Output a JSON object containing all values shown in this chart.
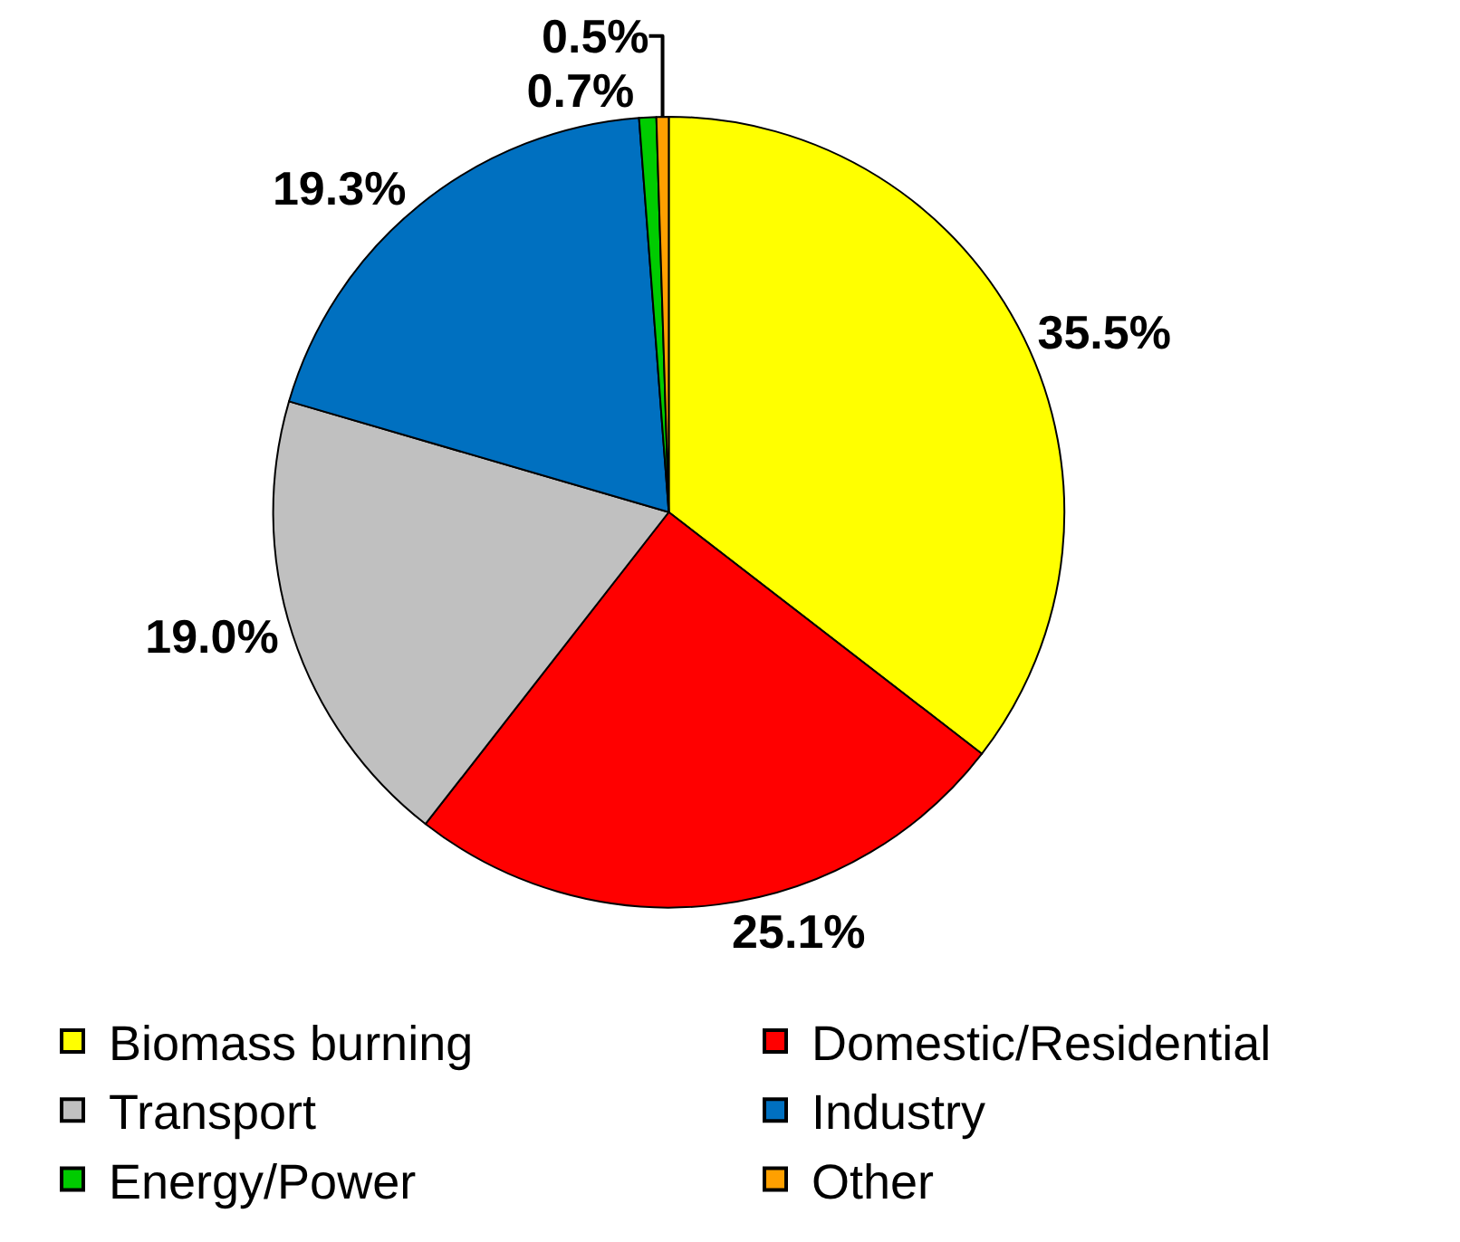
{
  "chart_data": {
    "type": "pie",
    "categories": [
      "Biomass burning",
      "Domestic/Residential",
      "Transport",
      "Industry",
      "Energy/Power",
      "Other"
    ],
    "values": [
      35.5,
      25.1,
      19.0,
      19.3,
      0.7,
      0.5
    ],
    "value_labels": [
      "35.5%",
      "25.1%",
      "19.0%",
      "19.3%",
      "0.7%",
      "0.5%"
    ],
    "colors": [
      "#ffff00",
      "#ff0000",
      "#c0c0c0",
      "#0070c0",
      "#00cc00",
      "#ffa000"
    ],
    "legend": "bottom"
  }
}
